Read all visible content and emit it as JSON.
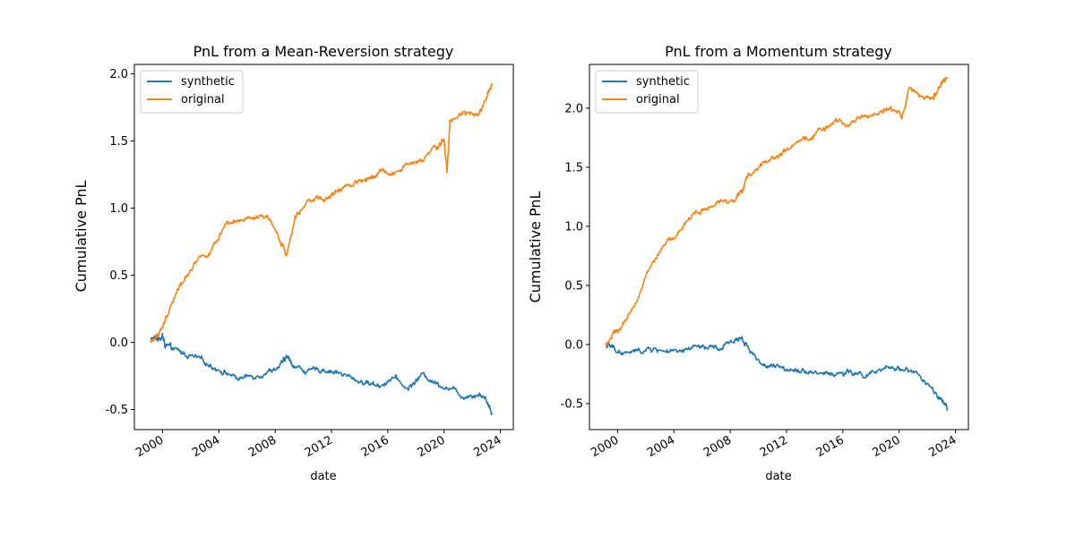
{
  "figure": {
    "colors": {
      "synthetic": "#1f77b4",
      "original": "#ff7f0e"
    }
  },
  "chart_data": [
    {
      "type": "line",
      "title": "PnL from a Mean-Reversion strategy",
      "xlabel": "date",
      "ylabel": "Cumulative PnL",
      "xlim": [
        "1998-01-01",
        "2024-12-01"
      ],
      "ylim": [
        -0.65,
        2.07
      ],
      "x_ticks": [
        "2000",
        "2004",
        "2008",
        "2012",
        "2016",
        "2020",
        "2024"
      ],
      "y_ticks": [
        "-0.5",
        "0.0",
        "0.5",
        "1.0",
        "1.5",
        "2.0"
      ],
      "y_tick_values": [
        -0.5,
        0.0,
        0.5,
        1.0,
        1.5,
        2.0
      ],
      "legend": {
        "position": "upper-left",
        "entries": [
          "synthetic",
          "original"
        ]
      },
      "grid": false,
      "series": [
        {
          "name": "synthetic",
          "x": [
            "1999-03-01",
            "1999-09-01",
            "2000-01-01",
            "2000-03-01",
            "2000-09-01",
            "2001-06-01",
            "2002-06-01",
            "2003-06-01",
            "2004-06-01",
            "2005-06-01",
            "2006-06-01",
            "2007-06-01",
            "2008-06-01",
            "2008-11-01",
            "2009-06-01",
            "2010-06-01",
            "2011-06-01",
            "2012-06-01",
            "2013-06-01",
            "2014-06-01",
            "2015-06-01",
            "2016-06-01",
            "2017-06-01",
            "2018-06-01",
            "2019-06-01",
            "2020-06-01",
            "2021-06-01",
            "2022-06-01",
            "2023-01-01",
            "2023-06-01"
          ],
          "y": [
            0.02,
            0.03,
            0.05,
            -0.02,
            -0.05,
            -0.08,
            -0.12,
            -0.17,
            -0.22,
            -0.27,
            -0.25,
            -0.22,
            -0.17,
            -0.11,
            -0.18,
            -0.22,
            -0.2,
            -0.22,
            -0.27,
            -0.3,
            -0.32,
            -0.26,
            -0.35,
            -0.24,
            -0.3,
            -0.34,
            -0.4,
            -0.38,
            -0.42,
            -0.53
          ]
        },
        {
          "name": "original",
          "x": [
            "1999-03-01",
            "1999-09-01",
            "2000-03-01",
            "2000-09-01",
            "2001-06-01",
            "2002-06-01",
            "2003-06-01",
            "2004-06-01",
            "2005-06-01",
            "2006-06-01",
            "2007-06-01",
            "2008-06-01",
            "2008-11-01",
            "2009-06-01",
            "2010-06-01",
            "2011-06-01",
            "2012-06-01",
            "2013-06-01",
            "2014-06-01",
            "2015-06-01",
            "2016-06-01",
            "2017-06-01",
            "2018-06-01",
            "2019-06-01",
            "2020-01-01",
            "2020-03-15",
            "2020-06-01",
            "2021-06-01",
            "2022-06-01",
            "2023-01-01",
            "2023-06-01"
          ],
          "y": [
            0.0,
            0.05,
            0.15,
            0.3,
            0.45,
            0.62,
            0.68,
            0.85,
            0.9,
            0.92,
            0.93,
            0.75,
            0.65,
            0.95,
            1.08,
            1.05,
            1.12,
            1.18,
            1.22,
            1.28,
            1.25,
            1.32,
            1.35,
            1.45,
            1.5,
            1.27,
            1.65,
            1.73,
            1.7,
            1.82,
            1.92
          ]
        }
      ]
    },
    {
      "type": "line",
      "title": "PnL from a Momentum strategy",
      "xlabel": "date",
      "ylabel": "Cumulative PnL",
      "xlim": [
        "1998-01-01",
        "2024-12-01"
      ],
      "ylim": [
        -0.72,
        2.37
      ],
      "x_ticks": [
        "2000",
        "2004",
        "2008",
        "2012",
        "2016",
        "2020",
        "2024"
      ],
      "y_ticks": [
        "-0.5",
        "0.0",
        "0.5",
        "1.0",
        "1.5",
        "2.0"
      ],
      "y_tick_values": [
        -0.5,
        0.0,
        0.5,
        1.0,
        1.5,
        2.0
      ],
      "legend": {
        "position": "upper-left",
        "entries": [
          "synthetic",
          "original"
        ]
      },
      "grid": false,
      "series": [
        {
          "name": "synthetic",
          "x": [
            "1999-03-01",
            "1999-09-01",
            "2000-06-01",
            "2001-06-01",
            "2002-06-01",
            "2003-06-01",
            "2004-06-01",
            "2005-06-01",
            "2006-06-01",
            "2007-06-01",
            "2008-06-01",
            "2008-11-01",
            "2009-06-01",
            "2010-06-01",
            "2011-06-01",
            "2012-06-01",
            "2013-06-01",
            "2014-06-01",
            "2015-06-01",
            "2016-06-01",
            "2017-06-01",
            "2018-06-01",
            "2019-06-01",
            "2020-06-01",
            "2021-06-01",
            "2022-06-01",
            "2023-01-01",
            "2023-06-01"
          ],
          "y": [
            0.0,
            -0.03,
            -0.08,
            -0.06,
            -0.04,
            -0.05,
            -0.08,
            -0.02,
            -0.03,
            -0.04,
            0.05,
            0.06,
            -0.05,
            -0.18,
            -0.2,
            -0.2,
            -0.22,
            -0.24,
            -0.25,
            -0.24,
            -0.26,
            -0.24,
            -0.2,
            -0.2,
            -0.26,
            -0.4,
            -0.48,
            -0.56
          ]
        },
        {
          "name": "original",
          "x": [
            "1999-03-01",
            "1999-09-01",
            "2000-06-01",
            "2001-06-01",
            "2002-06-01",
            "2003-06-01",
            "2004-06-01",
            "2005-06-01",
            "2006-06-01",
            "2007-06-01",
            "2008-06-01",
            "2008-11-01",
            "2009-06-01",
            "2010-06-01",
            "2011-06-01",
            "2012-06-01",
            "2013-06-01",
            "2014-06-01",
            "2015-06-01",
            "2016-06-01",
            "2017-06-01",
            "2018-06-01",
            "2019-06-01",
            "2020-03-15",
            "2020-09-01",
            "2021-06-01",
            "2022-06-01",
            "2023-01-01",
            "2023-06-01"
          ],
          "y": [
            0.0,
            0.08,
            0.15,
            0.4,
            0.68,
            0.85,
            0.95,
            1.12,
            1.15,
            1.2,
            1.25,
            1.3,
            1.45,
            1.55,
            1.6,
            1.67,
            1.73,
            1.82,
            1.87,
            1.88,
            1.93,
            1.96,
            2.0,
            1.92,
            2.15,
            2.12,
            2.08,
            2.2,
            2.25
          ]
        }
      ]
    }
  ]
}
